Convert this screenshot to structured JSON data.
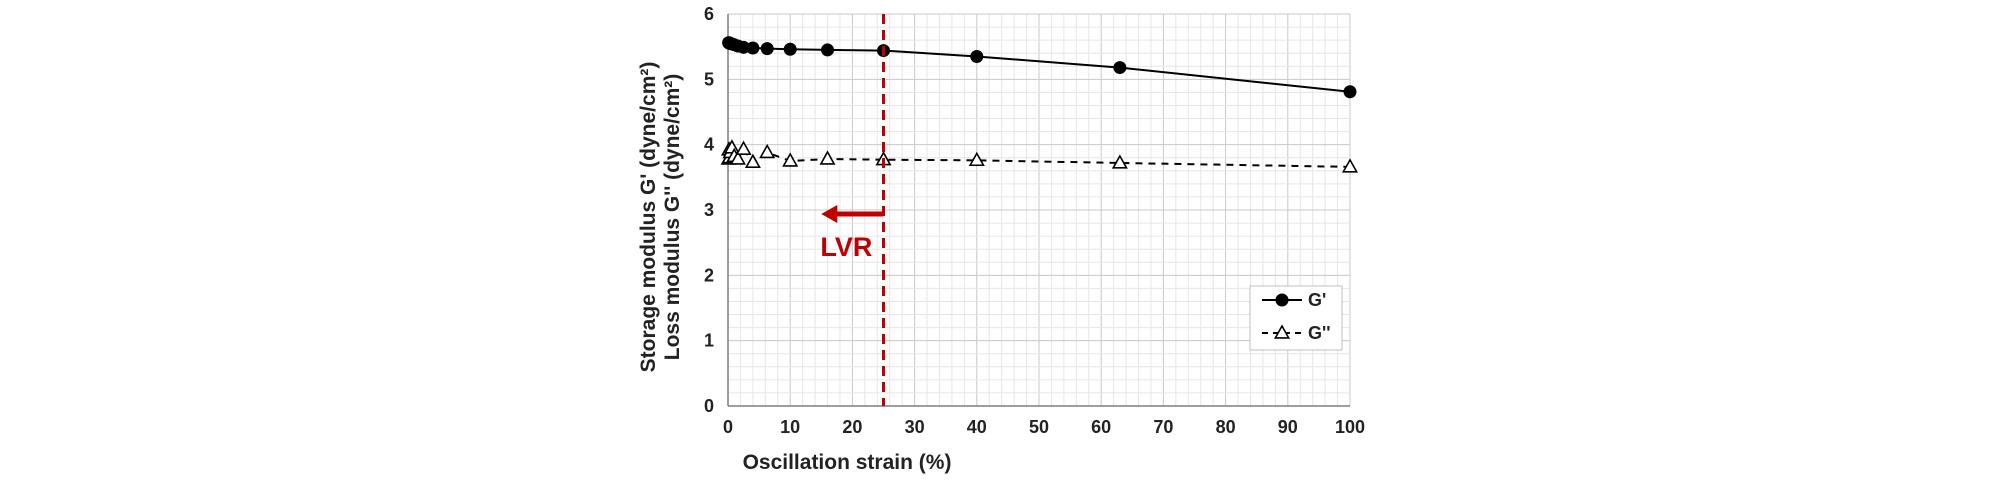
{
  "chart_data": {
    "type": "scatter",
    "xlabel": "Oscillation strain (%)",
    "ylabel": [
      "Storage modulus G' (dyne/cm²)",
      "Loss modulus G'' (dyne/cm²)"
    ],
    "xlim": [
      0,
      100
    ],
    "ylim": [
      0,
      6
    ],
    "x_ticks": [
      "0",
      "10",
      "20",
      "30",
      "40",
      "50",
      "60",
      "70",
      "80",
      "90",
      "100"
    ],
    "y_ticks": [
      "0",
      "1",
      "2",
      "3",
      "4",
      "5",
      "6"
    ],
    "grid": true,
    "legend_position": "right",
    "series": [
      {
        "name": "G'",
        "marker": "filled-circle",
        "line": "solid",
        "color": "#000000",
        "x": [
          0.1,
          0.16,
          0.25,
          0.4,
          0.63,
          1.0,
          1.6,
          2.5,
          4.0,
          6.3,
          10,
          16,
          25,
          40,
          63,
          100
        ],
        "y": [
          5.56,
          5.56,
          5.55,
          5.55,
          5.54,
          5.53,
          5.51,
          5.49,
          5.48,
          5.47,
          5.46,
          5.45,
          5.44,
          5.35,
          5.18,
          4.81
        ]
      },
      {
        "name": "G''",
        "marker": "open-triangle",
        "line": "dashed",
        "color": "#000000",
        "x": [
          0.1,
          0.16,
          0.25,
          0.4,
          0.63,
          1.0,
          1.6,
          2.5,
          4.0,
          6.3,
          10,
          16,
          25,
          40,
          63,
          100
        ],
        "y": [
          3.78,
          3.92,
          3.8,
          3.88,
          3.95,
          3.82,
          3.78,
          3.93,
          3.73,
          3.88,
          3.75,
          3.78,
          3.77,
          3.76,
          3.72,
          3.66
        ]
      }
    ],
    "reference_line": {
      "x": 25,
      "color": "#c00000",
      "style": "dashed"
    },
    "annotation": {
      "text": "LVR",
      "color": "#c00000",
      "arrow_from_x": 25,
      "arrow_to_x": 15,
      "arrow_y": 3.0,
      "direction": "left"
    }
  }
}
